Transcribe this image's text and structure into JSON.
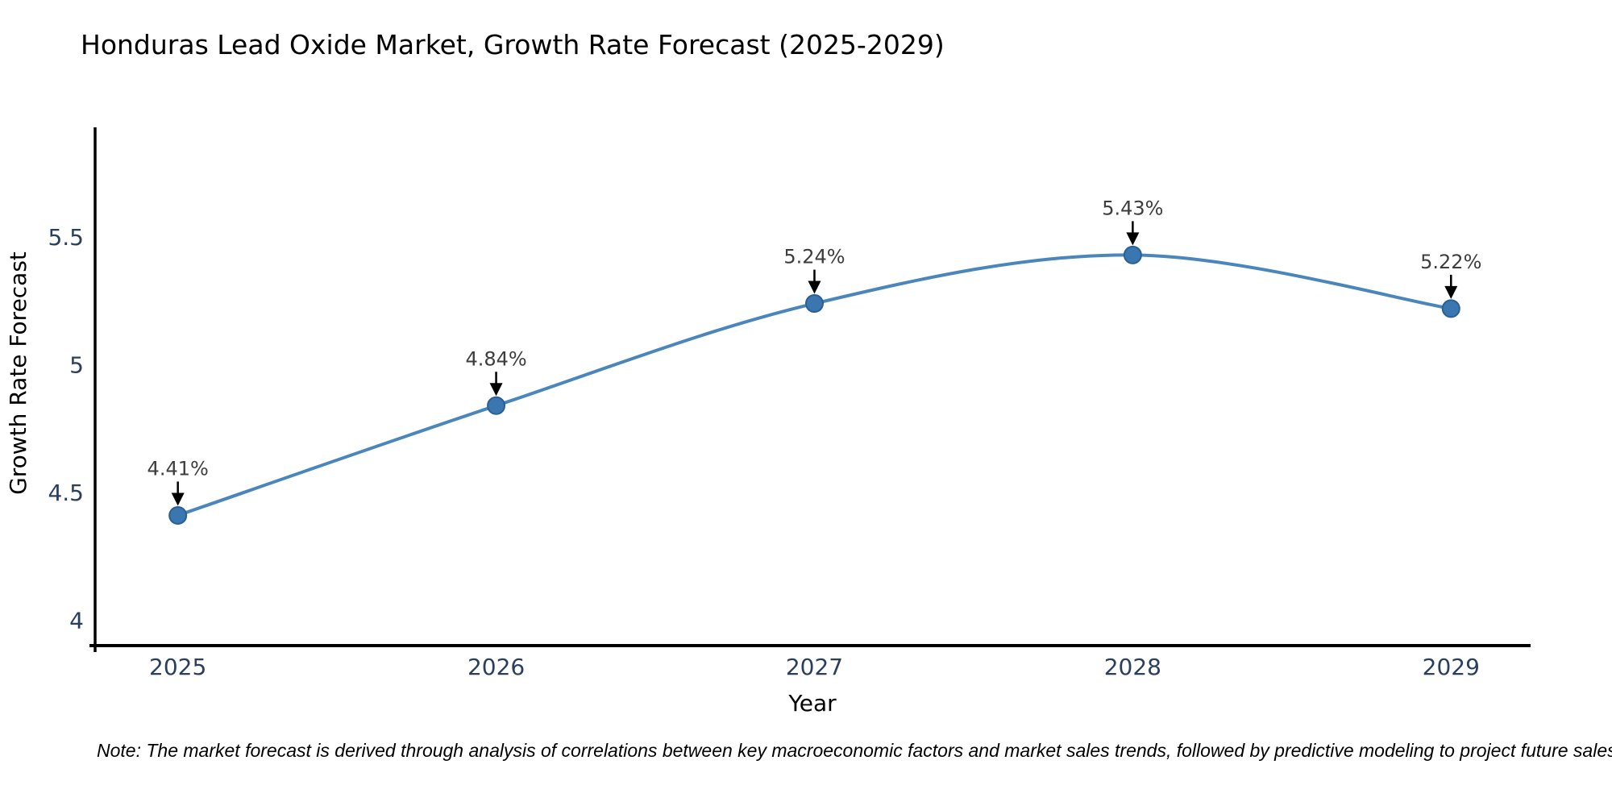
{
  "page": {
    "background": "#ffffff"
  },
  "chart_data": {
    "type": "line",
    "title": "Honduras Lead Oxide Market, Growth Rate Forecast (2025-2029)",
    "xlabel": "Year",
    "ylabel": "Growth Rate Forecast",
    "x": [
      2025,
      2026,
      2027,
      2028,
      2029
    ],
    "x_tick_labels": [
      "2025",
      "2026",
      "2027",
      "2028",
      "2029"
    ],
    "series": [
      {
        "name": "Growth Rate Forecast",
        "values": [
          4.41,
          4.84,
          5.24,
          5.43,
          5.22
        ]
      }
    ],
    "point_labels": [
      "4.41%",
      "4.84%",
      "5.24%",
      "5.43%",
      "5.22%"
    ],
    "yticks": [
      4,
      4.5,
      5,
      5.5
    ],
    "ytick_labels": [
      "4",
      "4.5",
      "5",
      "5.5"
    ],
    "ylim": [
      3.9,
      5.93
    ],
    "xlim": [
      2024.74,
      2029.25
    ],
    "grid": false,
    "legend_position": "none",
    "line_shape": "spline",
    "colors": {
      "line": "#4a86bb",
      "marker_fill": "#3a77b1",
      "marker_edge": "#2b5f93",
      "axis": "#000000",
      "title_text": "#2a3f5f",
      "tick_text": "#2a3f5f",
      "annotation_text": "#3d3d3d",
      "arrow": "#000000",
      "note_text": "#111111"
    }
  },
  "note": {
    "text": "Note: The market forecast is derived through analysis of correlations between key macroeconomic factors and market sales trends, followed by predictive modeling to project future sales"
  }
}
